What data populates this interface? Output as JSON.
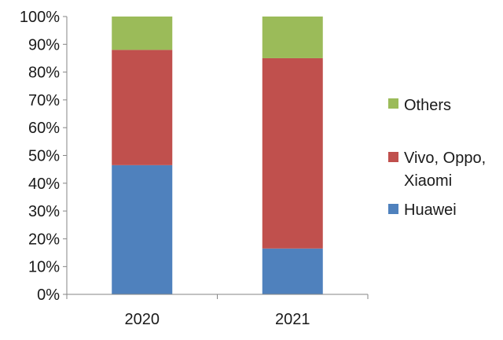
{
  "chart_data": {
    "type": "bar",
    "stacked": true,
    "categories": [
      "2020",
      "2021"
    ],
    "series": [
      {
        "name": "Huawei",
        "color": "#4F81BD",
        "values": [
          46.5,
          16.5
        ]
      },
      {
        "name": "Vivo, Oppo, Xiaomi",
        "color": "#C0504D",
        "values": [
          41.5,
          68.5
        ]
      },
      {
        "name": "Others",
        "color": "#9BBB59",
        "values": [
          12.0,
          15.0
        ]
      }
    ],
    "yticks": [
      "0%",
      "10%",
      "20%",
      "30%",
      "40%",
      "50%",
      "60%",
      "70%",
      "80%",
      "90%",
      "100%"
    ],
    "ylim": [
      0,
      100
    ],
    "grid": false,
    "legend_position": "right",
    "legend_order": [
      "Others",
      "Vivo, Oppo, Xiaomi",
      "Huawei"
    ],
    "legend_lines": {
      "Others": [
        "Others"
      ],
      "Vivo, Oppo, Xiaomi": [
        "Vivo, Oppo,",
        "Xiaomi"
      ],
      "Huawei": [
        "Huawei"
      ]
    }
  }
}
